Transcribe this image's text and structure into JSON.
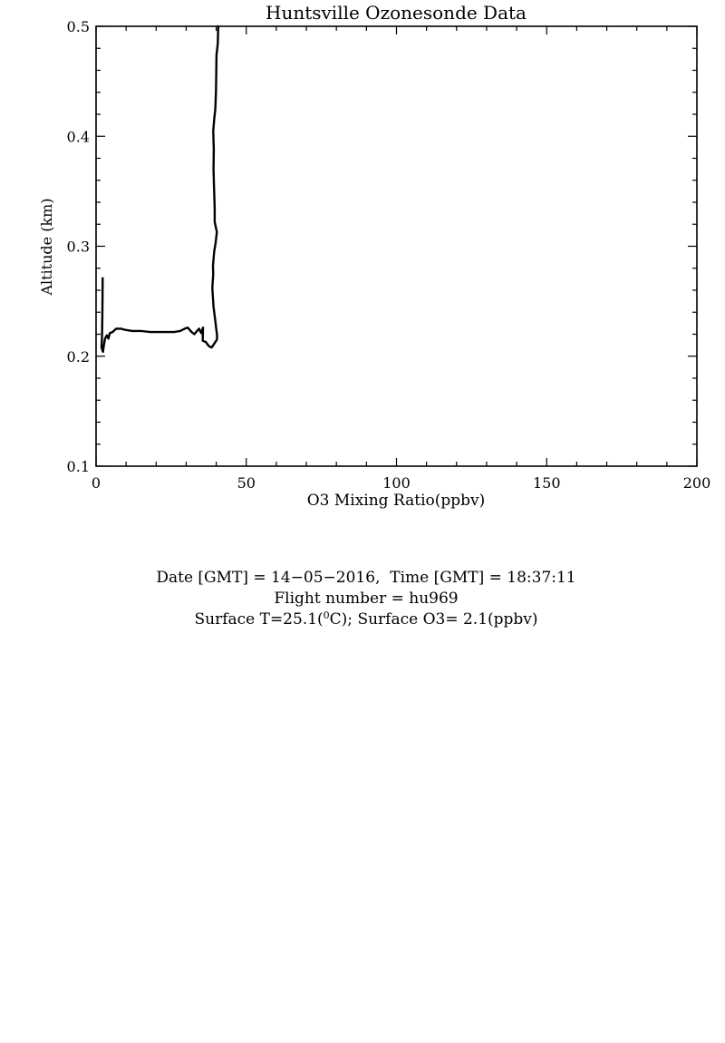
{
  "chart_data": {
    "type": "line",
    "title": "Huntsville Ozonesonde Data",
    "xlabel": "O3 Mixing Ratio(ppbv)",
    "ylabel": "Altitude (km)",
    "xlim": [
      0,
      200
    ],
    "ylim": [
      0.1,
      0.5
    ],
    "x_ticks": [
      "0",
      "50",
      "100",
      "150",
      "200"
    ],
    "y_ticks": [
      "0.1",
      "0.2",
      "0.3",
      "0.4",
      "0.5"
    ],
    "grid": false,
    "series": [
      {
        "color": "#000000",
        "points": [
          [
            2.2,
            0.271
          ],
          [
            2.1,
            0.24
          ],
          [
            2.0,
            0.218
          ],
          [
            1.8,
            0.208
          ],
          [
            2.3,
            0.204
          ],
          [
            2.6,
            0.21
          ],
          [
            3.0,
            0.216
          ],
          [
            3.6,
            0.219
          ],
          [
            4.1,
            0.216
          ],
          [
            4.6,
            0.221
          ],
          [
            5.5,
            0.222
          ],
          [
            6.7,
            0.225
          ],
          [
            8.3,
            0.225
          ],
          [
            9.5,
            0.224
          ],
          [
            12,
            0.223
          ],
          [
            15,
            0.223
          ],
          [
            18,
            0.222
          ],
          [
            22,
            0.222
          ],
          [
            26,
            0.222
          ],
          [
            28,
            0.223
          ],
          [
            29.5,
            0.225
          ],
          [
            30.5,
            0.226
          ],
          [
            31.8,
            0.222
          ],
          [
            32.7,
            0.22
          ],
          [
            33.3,
            0.222
          ],
          [
            34.3,
            0.225
          ],
          [
            35.0,
            0.221
          ],
          [
            35.6,
            0.226
          ],
          [
            35.5,
            0.214
          ],
          [
            36.5,
            0.213
          ],
          [
            37.6,
            0.209
          ],
          [
            38.5,
            0.208
          ],
          [
            39.5,
            0.212
          ],
          [
            40.2,
            0.215
          ],
          [
            40.3,
            0.218
          ],
          [
            39.8,
            0.23
          ],
          [
            39.1,
            0.245
          ],
          [
            38.7,
            0.262
          ],
          [
            39.0,
            0.275
          ],
          [
            38.9,
            0.282
          ],
          [
            39.3,
            0.295
          ],
          [
            39.8,
            0.303
          ],
          [
            40.2,
            0.313
          ],
          [
            39.5,
            0.322
          ],
          [
            39.5,
            0.335
          ],
          [
            39.3,
            0.35
          ],
          [
            39.1,
            0.37
          ],
          [
            39.2,
            0.388
          ],
          [
            39.0,
            0.405
          ],
          [
            39.3,
            0.415
          ],
          [
            39.7,
            0.425
          ],
          [
            39.9,
            0.44
          ],
          [
            40.0,
            0.455
          ],
          [
            40.1,
            0.474
          ],
          [
            40.5,
            0.484
          ],
          [
            40.6,
            0.494
          ],
          [
            40.7,
            0.5
          ]
        ]
      }
    ]
  },
  "info": {
    "date_line": "Date [GMT] = 14−05−2016,  Time [GMT] = 18:37:11",
    "flight_line": "Flight number = hu969",
    "surface_pre": "Surface T=25.1(",
    "surface_sup": "0",
    "surface_post": "C); Surface O3= 2.1(ppbv)"
  }
}
